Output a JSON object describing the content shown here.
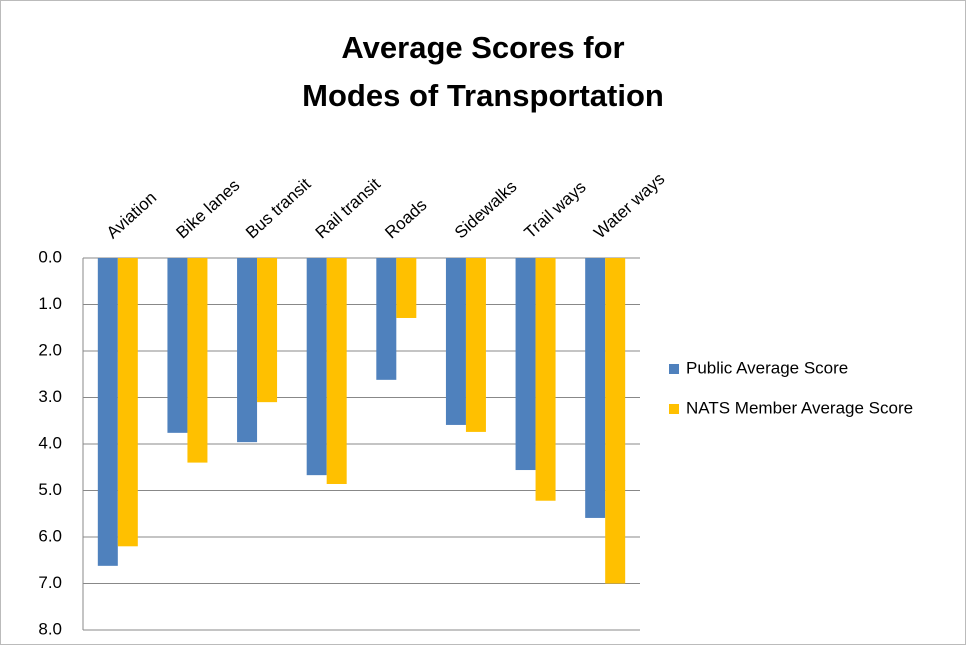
{
  "chart_data": {
    "type": "bar",
    "title": [
      "Average Scores for",
      "Modes of Transportation"
    ],
    "categories": [
      "Aviation",
      "Bike lanes",
      "Bus transit",
      "Rail transit",
      "Roads",
      "Sidewalks",
      "Trail ways",
      "Water ways"
    ],
    "series": [
      {
        "name": "Public Average Score",
        "color": "#4f81bd",
        "values": [
          6.62,
          3.76,
          3.96,
          4.67,
          2.62,
          3.59,
          4.56,
          5.59
        ]
      },
      {
        "name": "NATS Member Average Score",
        "color": "#ffc000",
        "values": [
          6.2,
          4.4,
          3.1,
          4.86,
          1.29,
          3.74,
          5.22,
          7.0
        ]
      }
    ],
    "ylim": [
      0,
      8
    ],
    "y_reversed": true,
    "yticks": [
      {
        "value": 0,
        "label": "0.0"
      },
      {
        "value": 1,
        "label": "1.0"
      },
      {
        "value": 2,
        "label": "2.0"
      },
      {
        "value": 3,
        "label": "3.0"
      },
      {
        "value": 4,
        "label": "4.0"
      },
      {
        "value": 5,
        "label": "5.0"
      },
      {
        "value": 6,
        "label": "6.0"
      },
      {
        "value": 7,
        "label": "7.0"
      },
      {
        "value": 8,
        "label": "8.0"
      }
    ],
    "grid": true,
    "legend": "right"
  }
}
